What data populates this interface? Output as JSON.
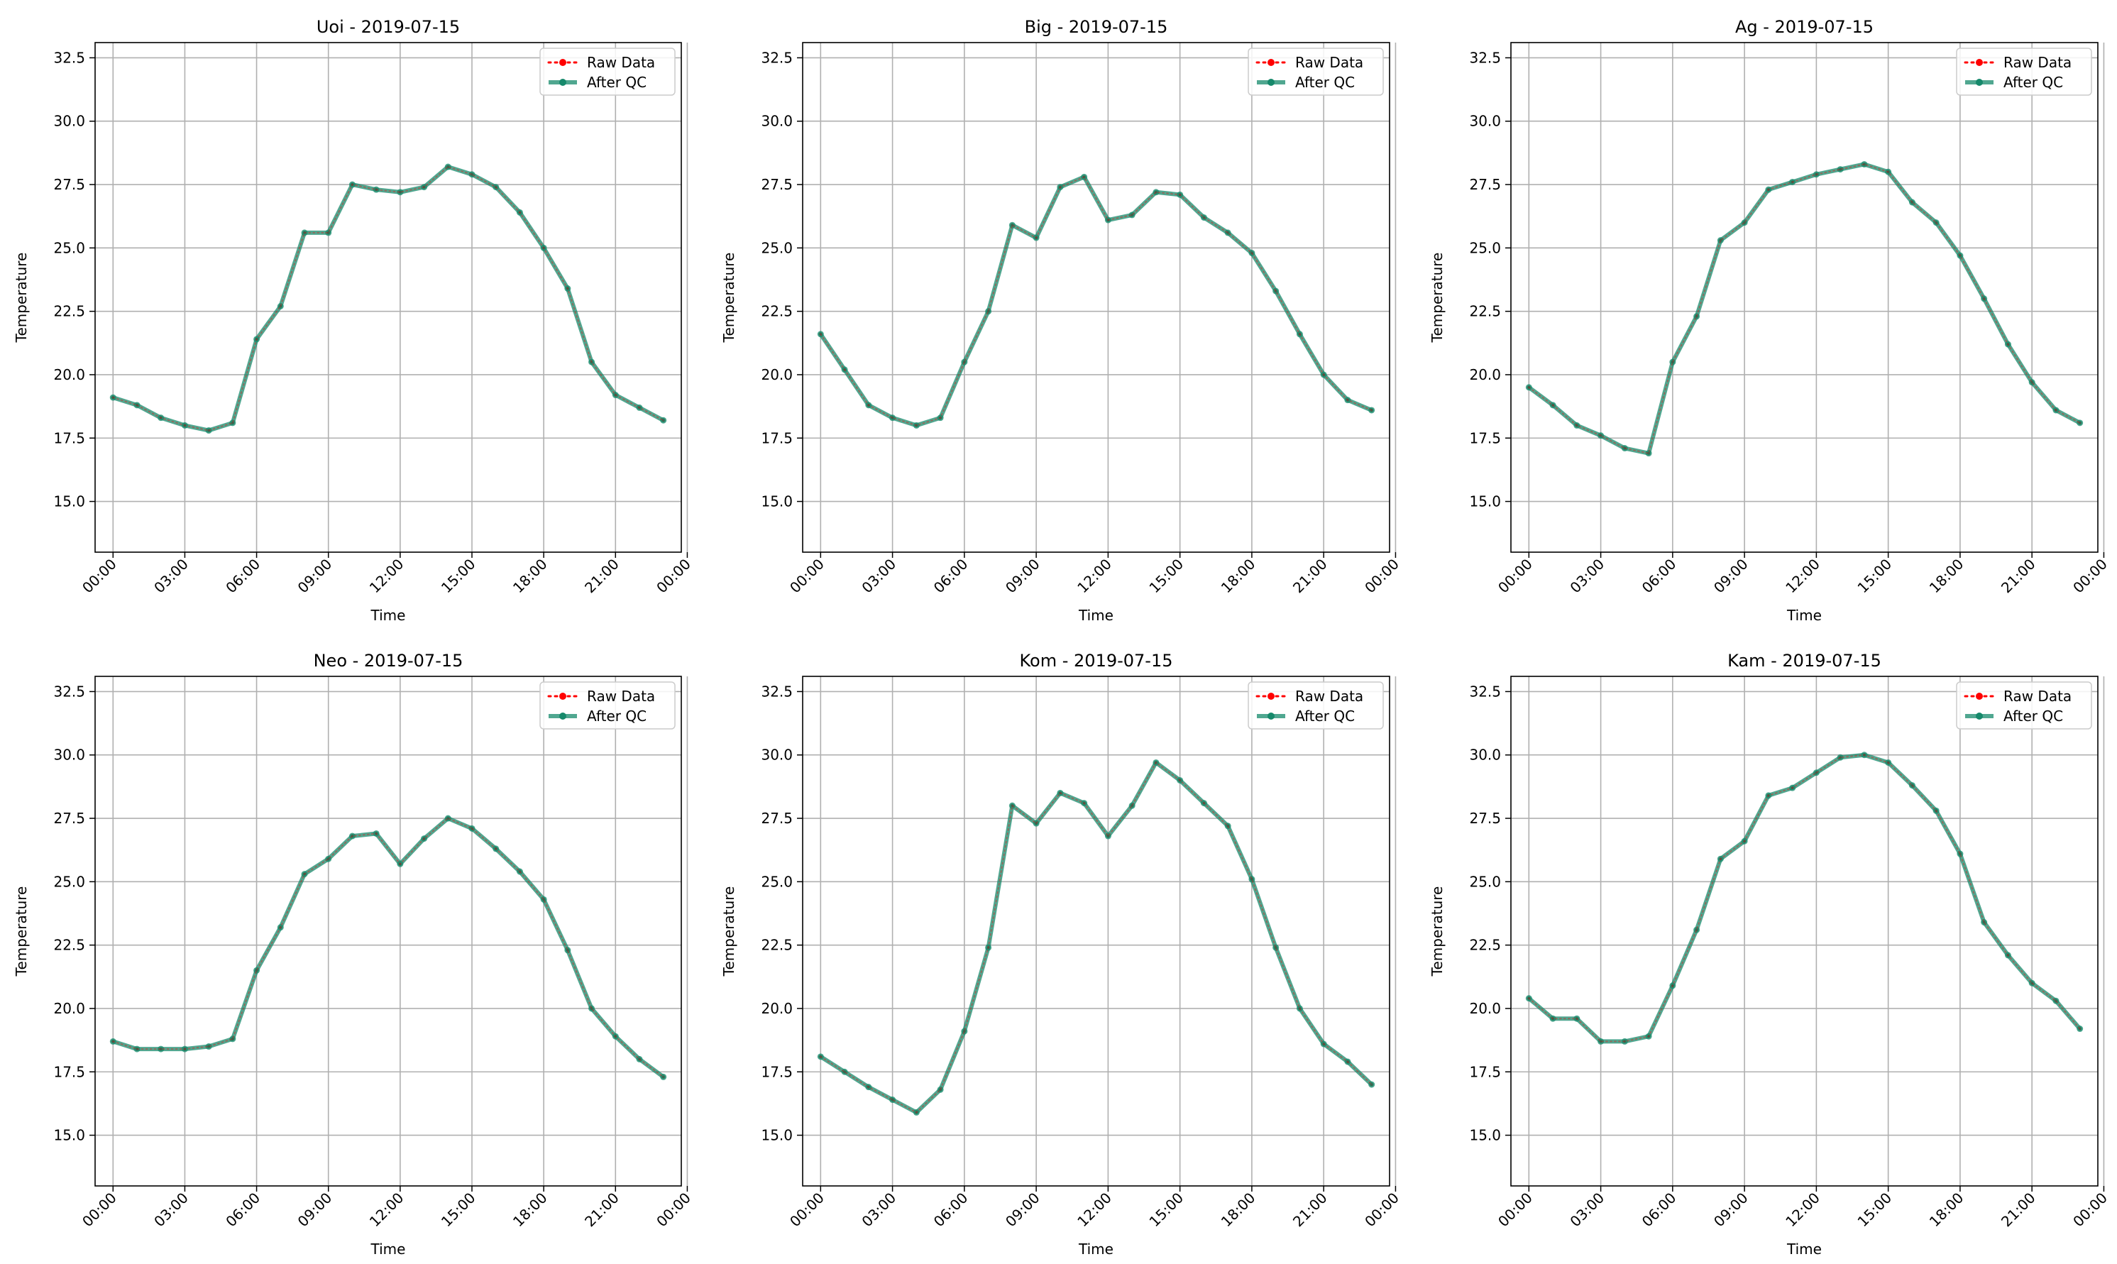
{
  "chart_data": [
    {
      "type": "line",
      "title": "Uoi - 2019-07-15",
      "xlabel": "Time",
      "ylabel": "Temperature",
      "xlim": [
        -0.75,
        23.75
      ],
      "ylim": [
        13.0,
        33.1
      ],
      "xticks": [
        0,
        3,
        6,
        9,
        12,
        15,
        18,
        21,
        24
      ],
      "xtick_labels": [
        "00:00",
        "03:00",
        "06:00",
        "09:00",
        "12:00",
        "15:00",
        "18:00",
        "21:00",
        "00:00"
      ],
      "yticks": [
        15.0,
        17.5,
        20.0,
        22.5,
        25.0,
        27.5,
        30.0,
        32.5
      ],
      "ytick_labels": [
        "15.0",
        "17.5",
        "20.0",
        "22.5",
        "25.0",
        "27.5",
        "30.0",
        "32.5"
      ],
      "grid": true,
      "legend": "top-right",
      "x": [
        0,
        1,
        2,
        3,
        4,
        5,
        6,
        7,
        8,
        9,
        10,
        11,
        12,
        13,
        14,
        15,
        16,
        17,
        18,
        19,
        20,
        21,
        22,
        23
      ],
      "series": [
        {
          "name": "Raw Data",
          "color": "#ff0000",
          "style": "dotted-markers",
          "values": [
            19.1,
            18.8,
            18.3,
            18.0,
            17.8,
            18.1,
            21.4,
            22.7,
            25.6,
            25.6,
            27.5,
            27.3,
            27.2,
            27.4,
            28.2,
            27.9,
            27.4,
            26.4,
            25.0,
            23.4,
            20.5,
            19.2,
            18.7,
            18.2
          ]
        },
        {
          "name": "After QC",
          "color": "#16896b",
          "style": "solid-markers",
          "values": [
            19.1,
            18.8,
            18.3,
            18.0,
            17.8,
            18.1,
            21.4,
            22.7,
            25.6,
            25.6,
            27.5,
            27.3,
            27.2,
            27.4,
            28.2,
            27.9,
            27.4,
            26.4,
            25.0,
            23.4,
            20.5,
            19.2,
            18.7,
            18.2
          ]
        }
      ]
    },
    {
      "type": "line",
      "title": "Big - 2019-07-15",
      "xlabel": "Time",
      "ylabel": "Temperature",
      "xlim": [
        -0.75,
        23.75
      ],
      "ylim": [
        13.0,
        33.1
      ],
      "xticks": [
        0,
        3,
        6,
        9,
        12,
        15,
        18,
        21,
        24
      ],
      "xtick_labels": [
        "00:00",
        "03:00",
        "06:00",
        "09:00",
        "12:00",
        "15:00",
        "18:00",
        "21:00",
        "00:00"
      ],
      "yticks": [
        15.0,
        17.5,
        20.0,
        22.5,
        25.0,
        27.5,
        30.0,
        32.5
      ],
      "ytick_labels": [
        "15.0",
        "17.5",
        "20.0",
        "22.5",
        "25.0",
        "27.5",
        "30.0",
        "32.5"
      ],
      "grid": true,
      "legend": "top-right",
      "x": [
        0,
        1,
        2,
        3,
        4,
        5,
        6,
        7,
        8,
        9,
        10,
        11,
        12,
        13,
        14,
        15,
        16,
        17,
        18,
        19,
        20,
        21,
        22,
        23
      ],
      "series": [
        {
          "name": "Raw Data",
          "color": "#ff0000",
          "style": "dotted-markers",
          "values": [
            21.6,
            20.2,
            18.8,
            18.3,
            18.0,
            18.3,
            20.5,
            22.5,
            25.9,
            25.4,
            27.4,
            27.8,
            26.1,
            26.3,
            27.2,
            27.1,
            26.2,
            25.6,
            24.8,
            23.3,
            21.6,
            20.0,
            19.0,
            18.6
          ]
        },
        {
          "name": "After QC",
          "color": "#16896b",
          "style": "solid-markers",
          "values": [
            21.6,
            20.2,
            18.8,
            18.3,
            18.0,
            18.3,
            20.5,
            22.5,
            25.9,
            25.4,
            27.4,
            27.8,
            26.1,
            26.3,
            27.2,
            27.1,
            26.2,
            25.6,
            24.8,
            23.3,
            21.6,
            20.0,
            19.0,
            18.6
          ]
        }
      ]
    },
    {
      "type": "line",
      "title": "Ag - 2019-07-15",
      "xlabel": "Time",
      "ylabel": "Temperature",
      "xlim": [
        -0.75,
        23.75
      ],
      "ylim": [
        13.0,
        33.1
      ],
      "xticks": [
        0,
        3,
        6,
        9,
        12,
        15,
        18,
        21,
        24
      ],
      "xtick_labels": [
        "00:00",
        "03:00",
        "06:00",
        "09:00",
        "12:00",
        "15:00",
        "18:00",
        "21:00",
        "00:00"
      ],
      "yticks": [
        15.0,
        17.5,
        20.0,
        22.5,
        25.0,
        27.5,
        30.0,
        32.5
      ],
      "ytick_labels": [
        "15.0",
        "17.5",
        "20.0",
        "22.5",
        "25.0",
        "27.5",
        "30.0",
        "32.5"
      ],
      "grid": true,
      "legend": "top-right",
      "x": [
        0,
        1,
        2,
        3,
        4,
        5,
        6,
        7,
        8,
        9,
        10,
        11,
        12,
        13,
        14,
        15,
        16,
        17,
        18,
        19,
        20,
        21,
        22,
        23
      ],
      "series": [
        {
          "name": "Raw Data",
          "color": "#ff0000",
          "style": "dotted-markers",
          "values": [
            19.5,
            18.8,
            18.0,
            17.6,
            17.1,
            16.9,
            20.5,
            22.3,
            25.3,
            26.0,
            27.3,
            27.6,
            27.9,
            28.1,
            28.3,
            28.0,
            26.8,
            26.0,
            24.7,
            23.0,
            21.2,
            19.7,
            18.6,
            18.1
          ]
        },
        {
          "name": "After QC",
          "color": "#16896b",
          "style": "solid-markers",
          "values": [
            19.5,
            18.8,
            18.0,
            17.6,
            17.1,
            16.9,
            20.5,
            22.3,
            25.3,
            26.0,
            27.3,
            27.6,
            27.9,
            28.1,
            28.3,
            28.0,
            26.8,
            26.0,
            24.7,
            23.0,
            21.2,
            19.7,
            18.6,
            18.1
          ]
        }
      ]
    },
    {
      "type": "line",
      "title": "Neo - 2019-07-15",
      "xlabel": "Time",
      "ylabel": "Temperature",
      "xlim": [
        -0.75,
        23.75
      ],
      "ylim": [
        13.0,
        33.1
      ],
      "xticks": [
        0,
        3,
        6,
        9,
        12,
        15,
        18,
        21,
        24
      ],
      "xtick_labels": [
        "00:00",
        "03:00",
        "06:00",
        "09:00",
        "12:00",
        "15:00",
        "18:00",
        "21:00",
        "00:00"
      ],
      "yticks": [
        15.0,
        17.5,
        20.0,
        22.5,
        25.0,
        27.5,
        30.0,
        32.5
      ],
      "ytick_labels": [
        "15.0",
        "17.5",
        "20.0",
        "22.5",
        "25.0",
        "27.5",
        "30.0",
        "32.5"
      ],
      "grid": true,
      "legend": "top-right",
      "x": [
        0,
        1,
        2,
        3,
        4,
        5,
        6,
        7,
        8,
        9,
        10,
        11,
        12,
        13,
        14,
        15,
        16,
        17,
        18,
        19,
        20,
        21,
        22,
        23
      ],
      "series": [
        {
          "name": "Raw Data",
          "color": "#ff0000",
          "style": "dotted-markers",
          "values": [
            18.7,
            18.4,
            18.4,
            18.4,
            18.5,
            18.8,
            21.5,
            23.2,
            25.3,
            25.9,
            26.8,
            26.9,
            25.7,
            26.7,
            27.5,
            27.1,
            26.3,
            25.4,
            24.3,
            22.3,
            20.0,
            18.9,
            18.0,
            17.3
          ]
        },
        {
          "name": "After QC",
          "color": "#16896b",
          "style": "solid-markers",
          "values": [
            18.7,
            18.4,
            18.4,
            18.4,
            18.5,
            18.8,
            21.5,
            23.2,
            25.3,
            25.9,
            26.8,
            26.9,
            25.7,
            26.7,
            27.5,
            27.1,
            26.3,
            25.4,
            24.3,
            22.3,
            20.0,
            18.9,
            18.0,
            17.3
          ]
        }
      ]
    },
    {
      "type": "line",
      "title": "Kom - 2019-07-15",
      "xlabel": "Time",
      "ylabel": "Temperature",
      "xlim": [
        -0.75,
        23.75
      ],
      "ylim": [
        13.0,
        33.1
      ],
      "xticks": [
        0,
        3,
        6,
        9,
        12,
        15,
        18,
        21,
        24
      ],
      "xtick_labels": [
        "00:00",
        "03:00",
        "06:00",
        "09:00",
        "12:00",
        "15:00",
        "18:00",
        "21:00",
        "00:00"
      ],
      "yticks": [
        15.0,
        17.5,
        20.0,
        22.5,
        25.0,
        27.5,
        30.0,
        32.5
      ],
      "ytick_labels": [
        "15.0",
        "17.5",
        "20.0",
        "22.5",
        "25.0",
        "27.5",
        "30.0",
        "32.5"
      ],
      "grid": true,
      "legend": "top-right",
      "x": [
        0,
        1,
        2,
        3,
        4,
        5,
        6,
        7,
        8,
        9,
        10,
        11,
        12,
        13,
        14,
        15,
        16,
        17,
        18,
        19,
        20,
        21,
        22,
        23
      ],
      "series": [
        {
          "name": "Raw Data",
          "color": "#ff0000",
          "style": "dotted-markers",
          "values": [
            18.1,
            17.5,
            16.9,
            16.4,
            15.9,
            16.8,
            19.1,
            22.4,
            28.0,
            27.3,
            28.5,
            28.1,
            26.8,
            28.0,
            29.7,
            29.0,
            28.1,
            27.2,
            25.1,
            22.4,
            20.0,
            18.6,
            17.9,
            17.0
          ]
        },
        {
          "name": "After QC",
          "color": "#16896b",
          "style": "solid-markers",
          "values": [
            18.1,
            17.5,
            16.9,
            16.4,
            15.9,
            16.8,
            19.1,
            22.4,
            28.0,
            27.3,
            28.5,
            28.1,
            26.8,
            28.0,
            29.7,
            29.0,
            28.1,
            27.2,
            25.1,
            22.4,
            20.0,
            18.6,
            17.9,
            17.0
          ]
        }
      ]
    },
    {
      "type": "line",
      "title": "Kam - 2019-07-15",
      "xlabel": "Time",
      "ylabel": "Temperature",
      "xlim": [
        -0.75,
        23.75
      ],
      "ylim": [
        13.0,
        33.1
      ],
      "xticks": [
        0,
        3,
        6,
        9,
        12,
        15,
        18,
        21,
        24
      ],
      "xtick_labels": [
        "00:00",
        "03:00",
        "06:00",
        "09:00",
        "12:00",
        "15:00",
        "18:00",
        "21:00",
        "00:00"
      ],
      "yticks": [
        15.0,
        17.5,
        20.0,
        22.5,
        25.0,
        27.5,
        30.0,
        32.5
      ],
      "ytick_labels": [
        "15.0",
        "17.5",
        "20.0",
        "22.5",
        "25.0",
        "27.5",
        "30.0",
        "32.5"
      ],
      "grid": true,
      "legend": "top-right",
      "x": [
        0,
        1,
        2,
        3,
        4,
        5,
        6,
        7,
        8,
        9,
        10,
        11,
        12,
        13,
        14,
        15,
        16,
        17,
        18,
        19,
        20,
        21,
        22,
        23
      ],
      "series": [
        {
          "name": "Raw Data",
          "color": "#ff0000",
          "style": "dotted-markers",
          "values": [
            20.4,
            19.6,
            19.6,
            18.7,
            18.7,
            18.9,
            20.9,
            23.1,
            25.9,
            26.6,
            28.4,
            28.7,
            29.3,
            29.9,
            30.0,
            29.7,
            28.8,
            27.8,
            26.1,
            23.4,
            22.1,
            21.0,
            20.3,
            19.2
          ]
        },
        {
          "name": "After QC",
          "color": "#16896b",
          "style": "solid-markers",
          "values": [
            20.4,
            19.6,
            19.6,
            18.7,
            18.7,
            18.9,
            20.9,
            23.1,
            25.9,
            26.6,
            28.4,
            28.7,
            29.3,
            29.9,
            30.0,
            29.7,
            28.8,
            27.8,
            26.1,
            23.4,
            22.1,
            21.0,
            20.3,
            19.2
          ]
        }
      ]
    }
  ]
}
